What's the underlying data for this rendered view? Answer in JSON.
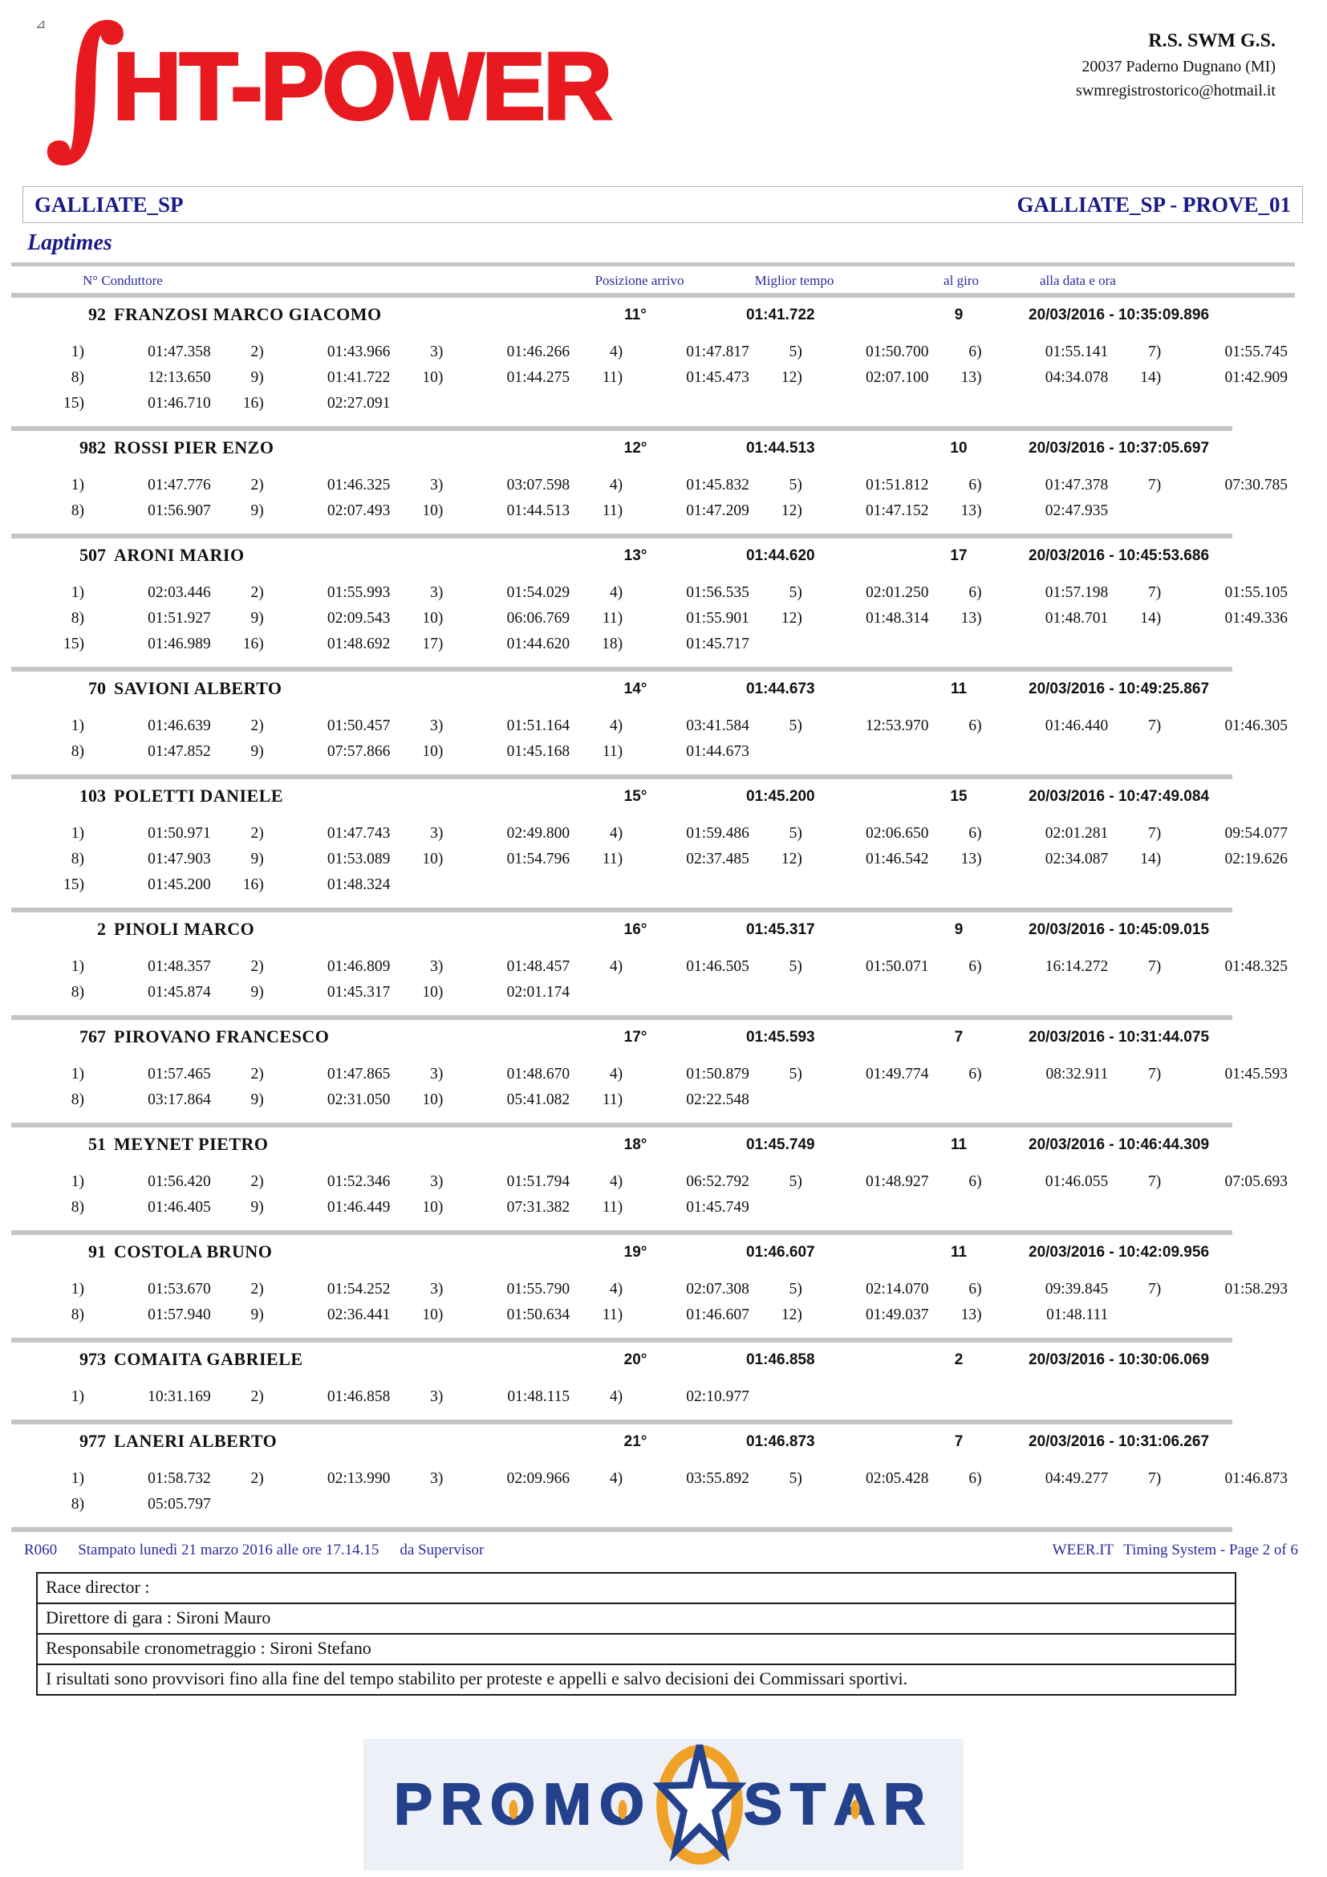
{
  "page": {
    "corner_glyph": "⊿",
    "logo_integral": "∫",
    "logo_text": "HT-POWER"
  },
  "org": {
    "name": "R.S. SWM G.S.",
    "address": "20037 Paderno Dugnano (MI)",
    "email": "swmregistrostorico@hotmail.it"
  },
  "event": {
    "left_title": "GALLIATE_SP",
    "right_title": "GALLIATE_SP - PROVE_01"
  },
  "section_title": "Laptimes",
  "table": {
    "headers": {
      "num_driver": "N°  Conduttore",
      "position": "Posizione arrivo",
      "best_time": "Miglior tempo",
      "at_lap": "al giro",
      "date_time": "alla data e ora"
    },
    "entries": [
      {
        "number": "92",
        "driver": "FRANZOSI MARCO GIACOMO",
        "position": "11°",
        "best_time": "01:41.722",
        "at_lap": "9",
        "date_time": "20/03/2016 - 10:35:09.896",
        "laps": [
          "01:47.358",
          "01:43.966",
          "01:46.266",
          "01:47.817",
          "01:50.700",
          "01:55.141",
          "01:55.745",
          "12:13.650",
          "01:41.722",
          "01:44.275",
          "01:45.473",
          "02:07.100",
          "04:34.078",
          "01:42.909",
          "01:46.710",
          "02:27.091"
        ]
      },
      {
        "number": "982",
        "driver": "ROSSI PIER ENZO",
        "position": "12°",
        "best_time": "01:44.513",
        "at_lap": "10",
        "date_time": "20/03/2016 - 10:37:05.697",
        "laps": [
          "01:47.776",
          "01:46.325",
          "03:07.598",
          "01:45.832",
          "01:51.812",
          "01:47.378",
          "07:30.785",
          "01:56.907",
          "02:07.493",
          "01:44.513",
          "01:47.209",
          "01:47.152",
          "02:47.935"
        ]
      },
      {
        "number": "507",
        "driver": "ARONI MARIO",
        "position": "13°",
        "best_time": "01:44.620",
        "at_lap": "17",
        "date_time": "20/03/2016 - 10:45:53.686",
        "laps": [
          "02:03.446",
          "01:55.993",
          "01:54.029",
          "01:56.535",
          "02:01.250",
          "01:57.198",
          "01:55.105",
          "01:51.927",
          "02:09.543",
          "06:06.769",
          "01:55.901",
          "01:48.314",
          "01:48.701",
          "01:49.336",
          "01:46.989",
          "01:48.692",
          "01:44.620",
          "01:45.717"
        ]
      },
      {
        "number": "70",
        "driver": "SAVIONI ALBERTO",
        "position": "14°",
        "best_time": "01:44.673",
        "at_lap": "11",
        "date_time": "20/03/2016 - 10:49:25.867",
        "laps": [
          "01:46.639",
          "01:50.457",
          "01:51.164",
          "03:41.584",
          "12:53.970",
          "01:46.440",
          "01:46.305",
          "01:47.852",
          "07:57.866",
          "01:45.168",
          "01:44.673"
        ]
      },
      {
        "number": "103",
        "driver": "POLETTI DANIELE",
        "position": "15°",
        "best_time": "01:45.200",
        "at_lap": "15",
        "date_time": "20/03/2016 - 10:47:49.084",
        "laps": [
          "01:50.971",
          "01:47.743",
          "02:49.800",
          "01:59.486",
          "02:06.650",
          "02:01.281",
          "09:54.077",
          "01:47.903",
          "01:53.089",
          "01:54.796",
          "02:37.485",
          "01:46.542",
          "02:34.087",
          "02:19.626",
          "01:45.200",
          "01:48.324"
        ]
      },
      {
        "number": "2",
        "driver": "PINOLI MARCO",
        "position": "16°",
        "best_time": "01:45.317",
        "at_lap": "9",
        "date_time": "20/03/2016 - 10:45:09.015",
        "laps": [
          "01:48.357",
          "01:46.809",
          "01:48.457",
          "01:46.505",
          "01:50.071",
          "16:14.272",
          "01:48.325",
          "01:45.874",
          "01:45.317",
          "02:01.174"
        ]
      },
      {
        "number": "767",
        "driver": "PIROVANO FRANCESCO",
        "position": "17°",
        "best_time": "01:45.593",
        "at_lap": "7",
        "date_time": "20/03/2016 - 10:31:44.075",
        "laps": [
          "01:57.465",
          "01:47.865",
          "01:48.670",
          "01:50.879",
          "01:49.774",
          "08:32.911",
          "01:45.593",
          "03:17.864",
          "02:31.050",
          "05:41.082",
          "02:22.548"
        ]
      },
      {
        "number": "51",
        "driver": "MEYNET PIETRO",
        "position": "18°",
        "best_time": "01:45.749",
        "at_lap": "11",
        "date_time": "20/03/2016 - 10:46:44.309",
        "laps": [
          "01:56.420",
          "01:52.346",
          "01:51.794",
          "06:52.792",
          "01:48.927",
          "01:46.055",
          "07:05.693",
          "01:46.405",
          "01:46.449",
          "07:31.382",
          "01:45.749"
        ]
      },
      {
        "number": "91",
        "driver": "COSTOLA BRUNO",
        "position": "19°",
        "best_time": "01:46.607",
        "at_lap": "11",
        "date_time": "20/03/2016 - 10:42:09.956",
        "laps": [
          "01:53.670",
          "01:54.252",
          "01:55.790",
          "02:07.308",
          "02:14.070",
          "09:39.845",
          "01:58.293",
          "01:57.940",
          "02:36.441",
          "01:50.634",
          "01:46.607",
          "01:49.037",
          "01:48.111"
        ]
      },
      {
        "number": "973",
        "driver": "COMAITA GABRIELE",
        "position": "20°",
        "best_time": "01:46.858",
        "at_lap": "2",
        "date_time": "20/03/2016 - 10:30:06.069",
        "laps": [
          "10:31.169",
          "01:46.858",
          "01:48.115",
          "02:10.977"
        ]
      },
      {
        "number": "977",
        "driver": "LANERI ALBERTO",
        "position": "21°",
        "best_time": "01:46.873",
        "at_lap": "7",
        "date_time": "20/03/2016 - 10:31:06.267",
        "laps": [
          "01:58.732",
          "02:13.990",
          "02:09.966",
          "03:55.892",
          "02:05.428",
          "04:49.277",
          "01:46.873",
          "05:05.797"
        ]
      }
    ]
  },
  "footer": {
    "report_code": "R060",
    "print_info": "Stampato lunedì 21 marzo 2016 alle ore 17.14.15",
    "printed_by": "da Supervisor",
    "system_name": "WEER.IT",
    "page_info": "Timing System - Page 2 of  6",
    "officials": [
      "Race director :",
      "Direttore di gara : Sironi Mauro",
      "Responsabile cronometraggio : Sironi Stefano",
      "I risultati sono provvisori fino alla fine del tempo stabilito per proteste e appelli e salvo decisioni dei Commissari sportivi."
    ]
  },
  "sponsor": {
    "word_left": "PROMO",
    "word_right": "STAR"
  },
  "colors": {
    "logo_red": "#e8191f",
    "title_navy": "#1a1a87",
    "header_blue": "#2b2b9e",
    "bar_gray": "#c5c5c5",
    "sponsor_blue": "#24418c",
    "sponsor_orange": "#efa128",
    "sponsor_bg": "#edf1f7"
  }
}
